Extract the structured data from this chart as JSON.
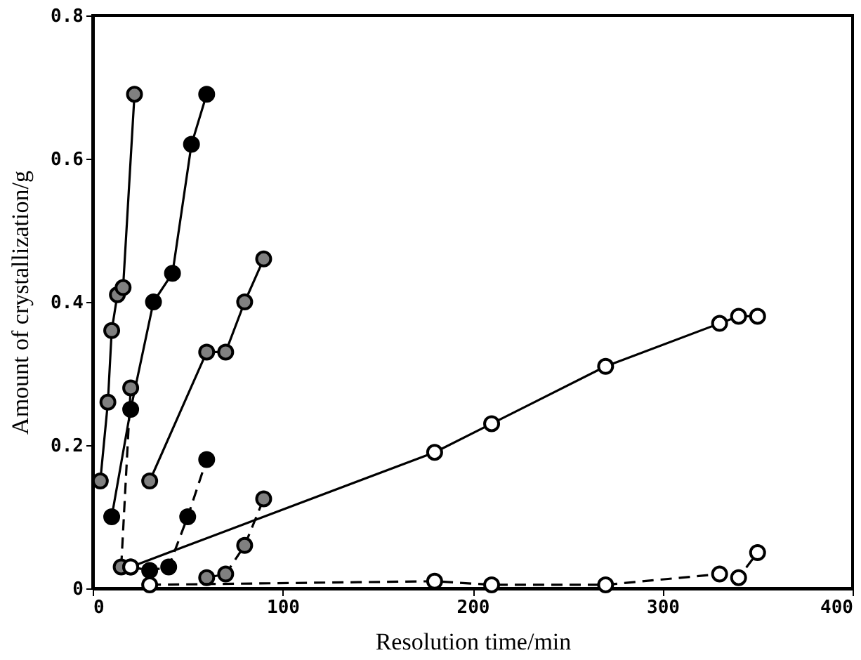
{
  "chart_data": {
    "type": "line",
    "xlabel": "Resolution time/min",
    "ylabel": "Amount of crystallization/g",
    "xlim": [
      0,
      400
    ],
    "xticks": [
      0,
      100,
      200,
      300,
      400
    ],
    "ylim": [
      0,
      0.8
    ],
    "yticks": [
      0,
      0.2,
      0.4,
      0.6,
      0.8
    ],
    "grid": false,
    "marker": "circle",
    "series": [
      {
        "color": "#808080",
        "line_style": "solid",
        "x": [
          4,
          8,
          10,
          13,
          16,
          22
        ],
        "values": [
          0.15,
          0.26,
          0.36,
          0.41,
          0.42,
          0.69
        ]
      },
      {
        "color": "#000000",
        "line_style": "solid",
        "x": [
          10,
          20,
          32,
          42,
          52,
          60
        ],
        "values": [
          0.1,
          0.25,
          0.4,
          0.44,
          0.62,
          0.69
        ]
      },
      {
        "color": "#808080",
        "line_style": "dashed",
        "x": [
          15,
          20
        ],
        "values": [
          0.03,
          0.28
        ]
      },
      {
        "color": "#808080",
        "line_style": "solid",
        "x": [
          30,
          60,
          70,
          80,
          90
        ],
        "values": [
          0.15,
          0.33,
          0.33,
          0.4,
          0.46
        ]
      },
      {
        "color": "#000000",
        "line_style": "dashed",
        "x": [
          20,
          30,
          40,
          50,
          60
        ],
        "values": [
          0.03,
          0.025,
          0.03,
          0.1,
          0.18
        ]
      },
      {
        "color": "#808080",
        "line_style": "dashed",
        "x": [
          60,
          70,
          80,
          90
        ],
        "values": [
          0.015,
          0.02,
          0.06,
          0.125
        ]
      },
      {
        "color": "#ffffff",
        "line_style": "solid",
        "x": [
          20,
          180,
          210,
          270,
          330,
          340,
          350
        ],
        "values": [
          0.03,
          0.19,
          0.23,
          0.31,
          0.37,
          0.38,
          0.38
        ]
      },
      {
        "color": "#ffffff",
        "line_style": "dashed",
        "x": [
          30,
          180,
          210,
          270,
          330,
          340,
          350
        ],
        "values": [
          0.005,
          0.01,
          0.005,
          0.005,
          0.02,
          0.015,
          0.05
        ]
      }
    ]
  }
}
